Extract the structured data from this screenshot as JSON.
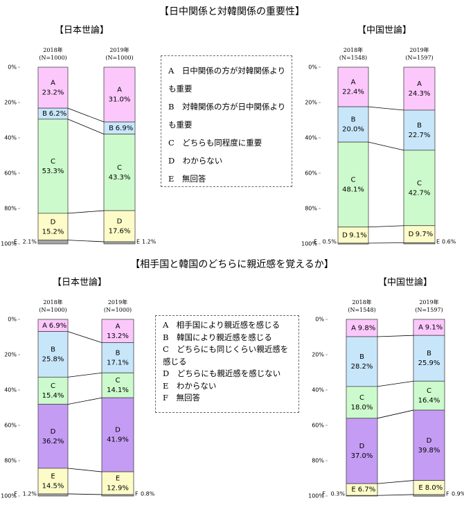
{
  "headings": [
    "【日中関係と対韓関係の重要性】",
    "【相手国と韓国のどちらに親近感を覚えるか】"
  ],
  "legends": [
    {
      "items": [
        "A　日中関係の方が対韓関係よりも重要",
        "B　対韓関係の方が日中関係よりも重要",
        "C　どちらも同程度に重要",
        "D　わからない",
        "E　無回答"
      ]
    },
    {
      "items": [
        "A　相手国により親近感を感じる",
        "B　韓国により親近感を感じる",
        "C　どちらにも同じくらい親近感を感じる",
        "D　どちらにも親近感を感じない",
        "E　わからない",
        "F　無回答"
      ]
    }
  ],
  "chart_data": [
    {
      "type": "bar",
      "stacked": true,
      "title": "【日本世論】",
      "categories": [
        "2018年",
        "2019年"
      ],
      "category_notes": [
        "(N=1000)",
        "(N=1000)"
      ],
      "ylim": [
        0,
        100
      ],
      "y_inverted": true,
      "yticks": [
        {
          "value": 0,
          "label": "0%"
        },
        {
          "value": 20,
          "label": "20%"
        },
        {
          "value": 40,
          "label": "40%"
        },
        {
          "value": 60,
          "label": "60%"
        },
        {
          "value": 80,
          "label": "80%"
        },
        {
          "value": 100,
          "label": "100%"
        }
      ],
      "series": [
        {
          "name": "A",
          "color": "#fcc8fc",
          "values": [
            23.2,
            31.0
          ],
          "value_labels": [
            "23.2%",
            "31.0%"
          ]
        },
        {
          "name": "B",
          "color": "#c8e6fa",
          "values": [
            6.2,
            6.9
          ],
          "value_labels": [
            "6.2%",
            "6.9%"
          ]
        },
        {
          "name": "C",
          "color": "#ccfacc",
          "values": [
            53.3,
            43.3
          ],
          "value_labels": [
            "53.3%",
            "43.3%"
          ]
        },
        {
          "name": "D",
          "color": "#fdfcc8",
          "values": [
            15.2,
            17.6
          ],
          "value_labels": [
            "15.2%",
            "17.6%"
          ]
        },
        {
          "name": "E",
          "color": "#a6a6a6",
          "values": [
            2.1,
            1.2
          ],
          "value_labels": [
            "2.1%",
            "1.2%"
          ]
        }
      ]
    },
    {
      "type": "bar",
      "stacked": true,
      "title": "【中国世論】",
      "categories": [
        "2018年",
        "2019年"
      ],
      "category_notes": [
        "(N=1548)",
        "(N=1597)"
      ],
      "ylim": [
        0,
        100
      ],
      "y_inverted": true,
      "yticks": [
        {
          "value": 0,
          "label": "0%"
        },
        {
          "value": 20,
          "label": "20%"
        },
        {
          "value": 40,
          "label": "40%"
        },
        {
          "value": 60,
          "label": "60%"
        },
        {
          "value": 80,
          "label": "80%"
        },
        {
          "value": 100,
          "label": "100%"
        }
      ],
      "series": [
        {
          "name": "A",
          "color": "#fcc8fc",
          "values": [
            22.4,
            24.3
          ],
          "value_labels": [
            "22.4%",
            "24.3%"
          ]
        },
        {
          "name": "B",
          "color": "#c8e6fa",
          "values": [
            20.0,
            22.7
          ],
          "value_labels": [
            "20.0%",
            "22.7%"
          ]
        },
        {
          "name": "C",
          "color": "#ccfacc",
          "values": [
            48.1,
            42.7
          ],
          "value_labels": [
            "48.1%",
            "42.7%"
          ]
        },
        {
          "name": "D",
          "color": "#fdfcc8",
          "values": [
            9.1,
            9.7
          ],
          "value_labels": [
            "9.1%",
            "9.7%"
          ]
        },
        {
          "name": "E",
          "color": "#a6a6a6",
          "values": [
            0.5,
            0.6
          ],
          "value_labels": [
            "0.5%",
            "0.6%"
          ]
        }
      ]
    },
    {
      "type": "bar",
      "stacked": true,
      "title": "【日本世論】",
      "categories": [
        "2018年",
        "2019年"
      ],
      "category_notes": [
        "(N=1000)",
        "(N=1000)"
      ],
      "ylim": [
        0,
        100
      ],
      "y_inverted": true,
      "yticks": [
        {
          "value": 0,
          "label": "0%"
        },
        {
          "value": 20,
          "label": "20%"
        },
        {
          "value": 40,
          "label": "40%"
        },
        {
          "value": 60,
          "label": "60%"
        },
        {
          "value": 80,
          "label": "80%"
        },
        {
          "value": 100,
          "label": "100%"
        }
      ],
      "series": [
        {
          "name": "A",
          "color": "#fcc8fc",
          "values": [
            6.9,
            13.2
          ],
          "value_labels": [
            "6.9%",
            "13.2%"
          ]
        },
        {
          "name": "B",
          "color": "#c8e6fa",
          "values": [
            25.8,
            17.1
          ],
          "value_labels": [
            "25.8%",
            "17.1%"
          ]
        },
        {
          "name": "C",
          "color": "#ccfacc",
          "values": [
            15.4,
            14.1
          ],
          "value_labels": [
            "15.4%",
            "14.1%"
          ]
        },
        {
          "name": "D",
          "color": "#c49cf4",
          "values": [
            36.2,
            41.9
          ],
          "value_labels": [
            "36.2%",
            "41.9%"
          ]
        },
        {
          "name": "E",
          "color": "#fdfcc8",
          "values": [
            14.5,
            12.9
          ],
          "value_labels": [
            "14.5%",
            "12.9%"
          ]
        },
        {
          "name": "F",
          "color": "#a6a6a6",
          "values": [
            1.2,
            0.8
          ],
          "value_labels": [
            "1.2%",
            "0.8%"
          ]
        }
      ]
    },
    {
      "type": "bar",
      "stacked": true,
      "title": "【中国世論】",
      "categories": [
        "2018年",
        "2019年"
      ],
      "category_notes": [
        "(N=1548)",
        "(N=1597)"
      ],
      "ylim": [
        0,
        100
      ],
      "y_inverted": true,
      "yticks": [
        {
          "value": 0,
          "label": "0%"
        },
        {
          "value": 20,
          "label": "20%"
        },
        {
          "value": 40,
          "label": "40%"
        },
        {
          "value": 60,
          "label": "60%"
        },
        {
          "value": 80,
          "label": "80%"
        },
        {
          "value": 100,
          "label": "100%"
        }
      ],
      "series": [
        {
          "name": "A",
          "color": "#fcc8fc",
          "values": [
            9.8,
            9.1
          ],
          "value_labels": [
            "9.8%",
            "9.1%"
          ]
        },
        {
          "name": "B",
          "color": "#c8e6fa",
          "values": [
            28.2,
            25.9
          ],
          "value_labels": [
            "28.2%",
            "25.9%"
          ]
        },
        {
          "name": "C",
          "color": "#ccfacc",
          "values": [
            18.0,
            16.4
          ],
          "value_labels": [
            "18.0%",
            "16.4%"
          ]
        },
        {
          "name": "D",
          "color": "#c49cf4",
          "values": [
            37.0,
            39.8
          ],
          "value_labels": [
            "37.0%",
            "39.8%"
          ]
        },
        {
          "name": "E",
          "color": "#fdfcc8",
          "values": [
            6.7,
            8.0
          ],
          "value_labels": [
            "6.7%",
            "8.0%"
          ]
        },
        {
          "name": "F",
          "color": "#a6a6a6",
          "values": [
            0.3,
            0.9
          ],
          "value_labels": [
            "0.3%",
            "0.9%"
          ]
        }
      ]
    }
  ]
}
